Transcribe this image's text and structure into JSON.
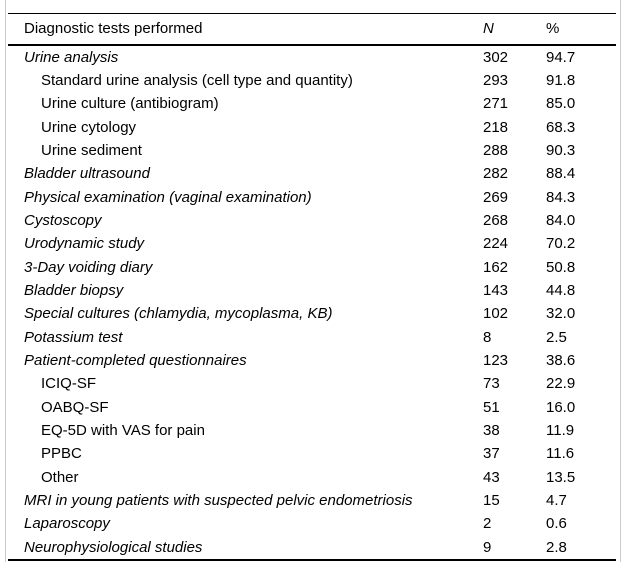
{
  "page": {
    "background_color": "#ffffff",
    "frame_border_color": "#cbcbcb",
    "rule_color": "#000000",
    "text_color": "#000000"
  },
  "table": {
    "columns": {
      "label": "Diagnostic tests performed",
      "n": "N",
      "pct": "%"
    },
    "rows": [
      {
        "label": "Urine analysis",
        "n": "302",
        "pct": "94.7",
        "italic": true,
        "indent": false
      },
      {
        "label": "Standard urine analysis (cell type and quantity)",
        "n": "293",
        "pct": "91.8",
        "italic": false,
        "indent": true
      },
      {
        "label": "Urine culture (antibiogram)",
        "n": "271",
        "pct": "85.0",
        "italic": false,
        "indent": true
      },
      {
        "label": "Urine cytology",
        "n": "218",
        "pct": "68.3",
        "italic": false,
        "indent": true
      },
      {
        "label": "Urine sediment",
        "n": "288",
        "pct": "90.3",
        "italic": false,
        "indent": true
      },
      {
        "label": "Bladder ultrasound",
        "n": "282",
        "pct": "88.4",
        "italic": true,
        "indent": false
      },
      {
        "label": "Physical examination (vaginal examination)",
        "n": "269",
        "pct": "84.3",
        "italic": true,
        "indent": false
      },
      {
        "label": "Cystoscopy",
        "n": "268",
        "pct": "84.0",
        "italic": true,
        "indent": false
      },
      {
        "label": "Urodynamic study",
        "n": "224",
        "pct": "70.2",
        "italic": true,
        "indent": false
      },
      {
        "label": "3-Day voiding diary",
        "n": "162",
        "pct": "50.8",
        "italic": true,
        "indent": false
      },
      {
        "label": "Bladder biopsy",
        "n": "143",
        "pct": "44.8",
        "italic": true,
        "indent": false
      },
      {
        "label": "Special cultures (chlamydia, mycoplasma, KB)",
        "n": "102",
        "pct": "32.0",
        "italic": true,
        "indent": false
      },
      {
        "label": "Potassium test",
        "n": "8",
        "pct": "2.5",
        "italic": true,
        "indent": false
      },
      {
        "label": "Patient-completed questionnaires",
        "n": "123",
        "pct": "38.6",
        "italic": true,
        "indent": false
      },
      {
        "label": "ICIQ-SF",
        "n": "73",
        "pct": "22.9",
        "italic": false,
        "indent": true
      },
      {
        "label": "OABQ-SF",
        "n": "51",
        "pct": "16.0",
        "italic": false,
        "indent": true
      },
      {
        "label": "EQ-5D with VAS for pain",
        "n": "38",
        "pct": "11.9",
        "italic": false,
        "indent": true
      },
      {
        "label": "PPBC",
        "n": "37",
        "pct": "11.6",
        "italic": false,
        "indent": true
      },
      {
        "label": "Other",
        "n": "43",
        "pct": "13.5",
        "italic": false,
        "indent": true
      },
      {
        "label": "MRI in young patients with suspected pelvic endometriosis",
        "n": "15",
        "pct": "4.7",
        "italic": true,
        "indent": false
      },
      {
        "label": "Laparoscopy",
        "n": "2",
        "pct": "0.6",
        "italic": true,
        "indent": false
      },
      {
        "label": "Neurophysiological studies",
        "n": "9",
        "pct": "2.8",
        "italic": true,
        "indent": false
      }
    ]
  }
}
